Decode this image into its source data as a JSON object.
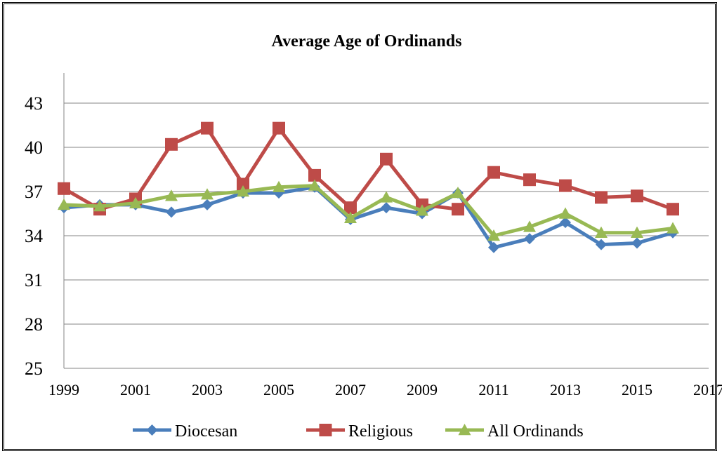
{
  "chart_data": {
    "type": "line",
    "title": "Average Age of Ordinands",
    "xlabel": "",
    "ylabel": "",
    "x": [
      1999,
      2000,
      2001,
      2002,
      2003,
      2004,
      2005,
      2006,
      2007,
      2008,
      2009,
      2010,
      2011,
      2012,
      2013,
      2014,
      2015,
      2016
    ],
    "x_ticks": [
      "1999",
      "2001",
      "2003",
      "2005",
      "2007",
      "2009",
      "2011",
      "2013",
      "2015",
      "2017"
    ],
    "xlim": [
      1999,
      2017
    ],
    "y_ticks": [
      "25",
      "28",
      "31",
      "34",
      "37",
      "40",
      "43"
    ],
    "ylim": [
      25,
      46
    ],
    "grid": "horizontal",
    "legend_position": "bottom",
    "series": [
      {
        "name": "Diocesan",
        "marker": "diamond",
        "color": "#4A7EBB",
        "values": [
          35.9,
          36.1,
          36.1,
          35.6,
          36.1,
          36.9,
          36.9,
          37.3,
          35.1,
          35.9,
          35.5,
          36.9,
          33.2,
          33.8,
          34.9,
          33.4,
          33.5,
          34.2
        ]
      },
      {
        "name": "Religious",
        "marker": "square",
        "color": "#BE4B48",
        "values": [
          37.2,
          35.8,
          36.5,
          40.2,
          41.3,
          37.5,
          41.3,
          38.1,
          35.9,
          39.2,
          36.1,
          35.8,
          38.3,
          37.8,
          37.4,
          36.6,
          36.7,
          35.8
        ]
      },
      {
        "name": "All Ordinands",
        "marker": "triangle",
        "color": "#98B954",
        "values": [
          36.1,
          36.0,
          36.2,
          36.7,
          36.8,
          37.0,
          37.3,
          37.4,
          35.2,
          36.6,
          35.7,
          36.9,
          34.0,
          34.6,
          35.5,
          34.2,
          34.2,
          34.5
        ]
      }
    ]
  }
}
